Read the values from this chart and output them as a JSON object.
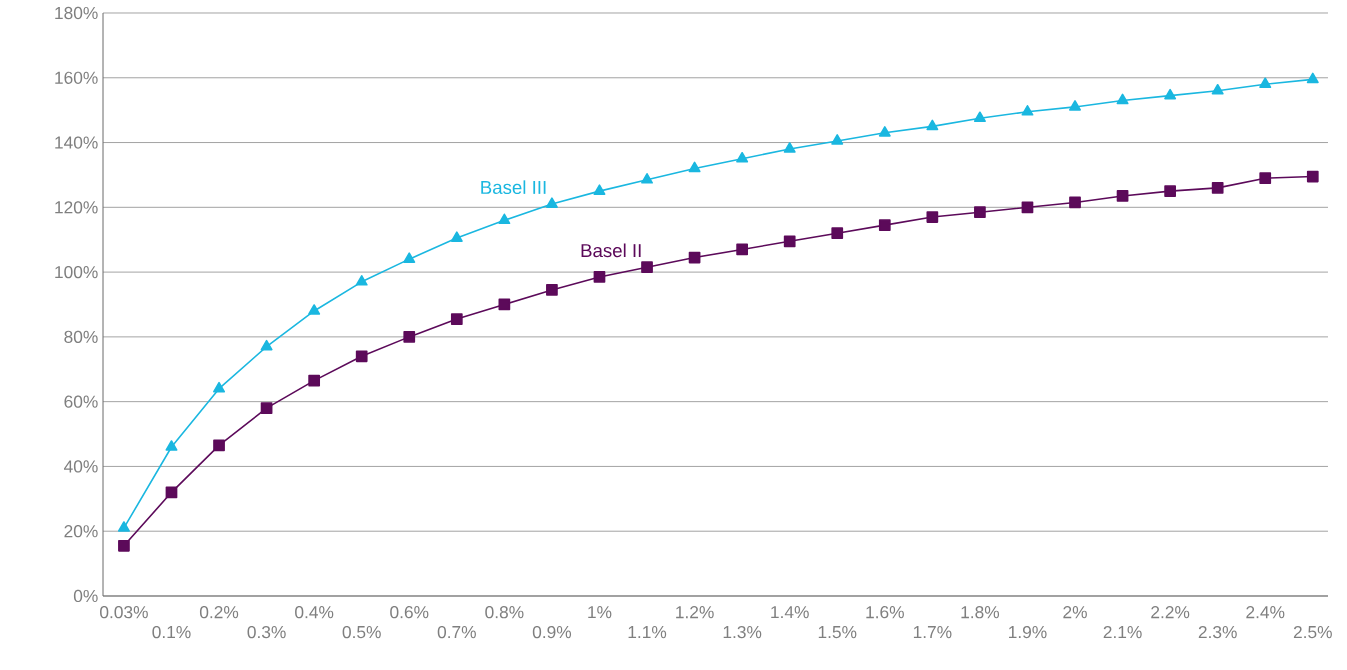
{
  "chart_data": {
    "type": "line",
    "categories": [
      "0.03%",
      "0.1%",
      "0.2%",
      "0.3%",
      "0.4%",
      "0.5%",
      "0.6%",
      "0.7%",
      "0.8%",
      "0.9%",
      "1%",
      "1.1%",
      "1.2%",
      "1.3%",
      "1.4%",
      "1.5%",
      "1.6%",
      "1.7%",
      "1.8%",
      "1.9%",
      "2%",
      "2.1%",
      "2.2%",
      "2.3%",
      "2.4%",
      "2.5%"
    ],
    "series": [
      {
        "name": "Basel III",
        "color": "#1ab7e0",
        "marker": "triangle",
        "values": [
          21,
          46,
          64,
          77,
          88,
          97,
          104,
          110.5,
          116,
          121,
          125,
          128.5,
          132,
          135,
          138,
          140.5,
          143,
          145,
          147.5,
          149.5,
          151,
          153,
          154.5,
          156,
          158,
          159.5
        ]
      },
      {
        "name": "Basel II",
        "color": "#5c0a5a",
        "marker": "square",
        "values": [
          15.5,
          32,
          46.5,
          58,
          66.5,
          74,
          80,
          85.5,
          90,
          94.5,
          98.5,
          101.5,
          104.5,
          107,
          109.5,
          112,
          114.5,
          117,
          118.5,
          120,
          121.5,
          123.5,
          125,
          126,
          129,
          129.5
        ]
      }
    ],
    "ylim": [
      0,
      180
    ],
    "yticks": [
      {
        "value": 0,
        "label": "0%"
      },
      {
        "value": 20,
        "label": "20%"
      },
      {
        "value": 40,
        "label": "40%"
      },
      {
        "value": 60,
        "label": "60%"
      },
      {
        "value": 80,
        "label": "80%"
      },
      {
        "value": 100,
        "label": "100%"
      },
      {
        "value": 120,
        "label": "120%"
      },
      {
        "value": 140,
        "label": "140%"
      },
      {
        "value": 160,
        "label": "160%"
      },
      {
        "value": 180,
        "label": "180%"
      }
    ],
    "grid": "y",
    "legend": false,
    "line_style": "solid"
  }
}
